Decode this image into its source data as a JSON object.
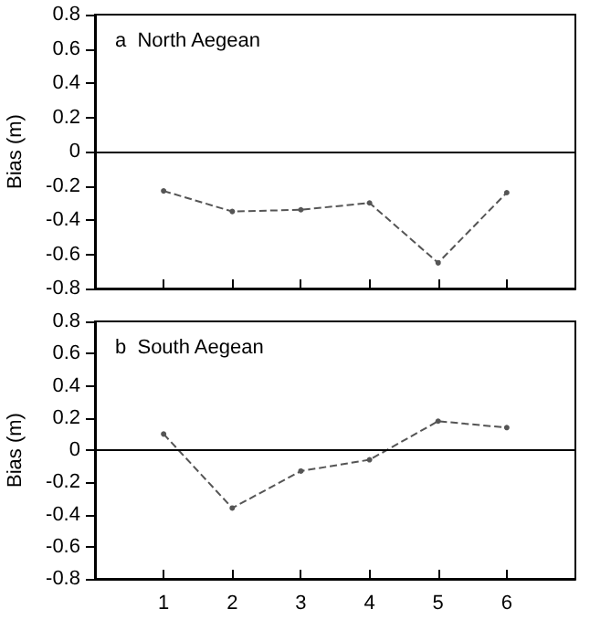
{
  "chart_data": [
    {
      "type": "line",
      "title": "a  North Aegean",
      "ylabel": "Bias (m)",
      "x": [
        1,
        2,
        3,
        4,
        5,
        6
      ],
      "series": [
        {
          "color": "#555555",
          "values": [
            -0.23,
            -0.35,
            -0.34,
            -0.3,
            -0.65,
            -0.24
          ]
        }
      ],
      "xlim": [
        0,
        7
      ],
      "xticks": [
        1,
        2,
        3,
        4,
        5,
        6
      ],
      "ylim": [
        -0.8,
        0.8
      ],
      "yticks": [
        -0.8,
        -0.6,
        -0.4,
        -0.2,
        0,
        0.2,
        0.4,
        0.6,
        0.8
      ],
      "ref_lines": [
        {
          "axis": "y",
          "value": 0,
          "color": "#000000"
        }
      ],
      "marker": "circle",
      "line_style": "dashed",
      "tick_labels": "y"
    },
    {
      "type": "line",
      "title": "b  South Aegean",
      "ylabel": "Bias (m)",
      "x": [
        1,
        2,
        3,
        4,
        5,
        6
      ],
      "series": [
        {
          "color": "#555555",
          "values": [
            0.1,
            -0.36,
            -0.13,
            -0.06,
            0.18,
            0.14
          ]
        }
      ],
      "xlim": [
        0,
        7
      ],
      "xticks": [
        1,
        2,
        3,
        4,
        5,
        6
      ],
      "ylim": [
        -0.8,
        0.8
      ],
      "yticks": [
        -0.8,
        -0.6,
        -0.4,
        -0.2,
        0,
        0.2,
        0.4,
        0.6,
        0.8
      ],
      "ref_lines": [
        {
          "axis": "y",
          "value": 0,
          "color": "#000000"
        }
      ],
      "marker": "circle",
      "line_style": "dashed"
    }
  ]
}
